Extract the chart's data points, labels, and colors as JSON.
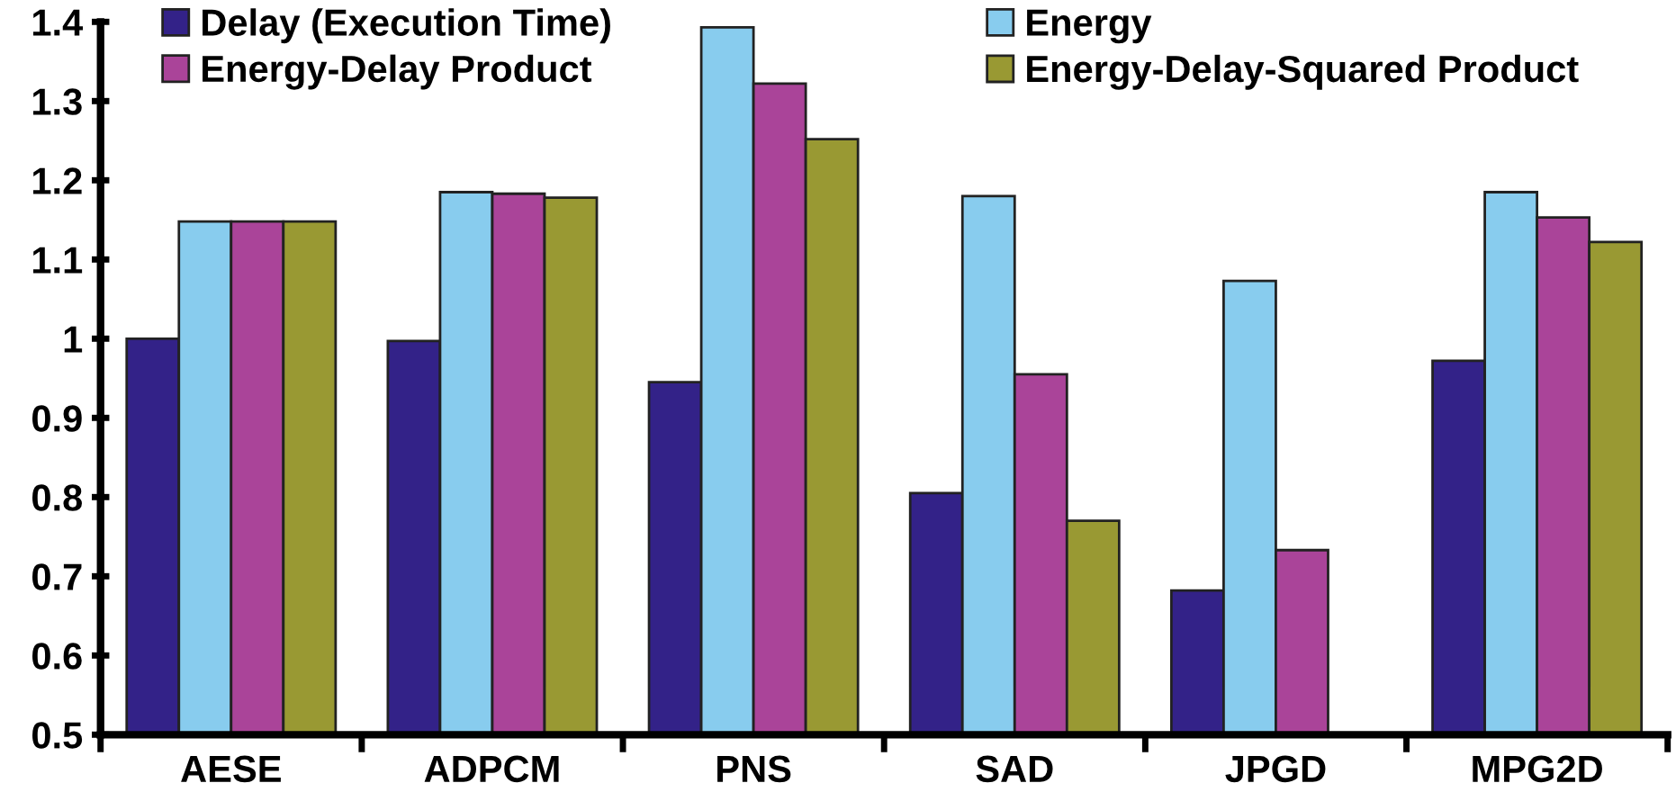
{
  "chart_data": {
    "type": "bar",
    "categories": [
      "AESE",
      "ADPCM",
      "PNS",
      "SAD",
      "JPGD",
      "MPG2D"
    ],
    "series": [
      {
        "name": "Delay (Execution Time)",
        "color": "#332288",
        "values": [
          1.0,
          0.997,
          0.945,
          0.805,
          0.682,
          0.972
        ]
      },
      {
        "name": "Energy",
        "color": "#88ccee",
        "values": [
          1.148,
          1.185,
          1.393,
          1.18,
          1.073,
          1.185
        ]
      },
      {
        "name": "Energy-Delay Product",
        "color": "#aa4499",
        "values": [
          1.148,
          1.183,
          1.322,
          0.955,
          0.733,
          1.153
        ]
      },
      {
        "name": "Energy-Delay-Squared Product",
        "color": "#999933",
        "values": [
          1.148,
          1.178,
          1.252,
          0.77,
          null,
          1.122
        ]
      }
    ],
    "ylim": [
      0.5,
      1.4
    ],
    "yticks": [
      0.5,
      0.6,
      0.7,
      0.8,
      0.9,
      1,
      1.1,
      1.2,
      1.3,
      1.4
    ],
    "legend": "top",
    "grid": false
  }
}
